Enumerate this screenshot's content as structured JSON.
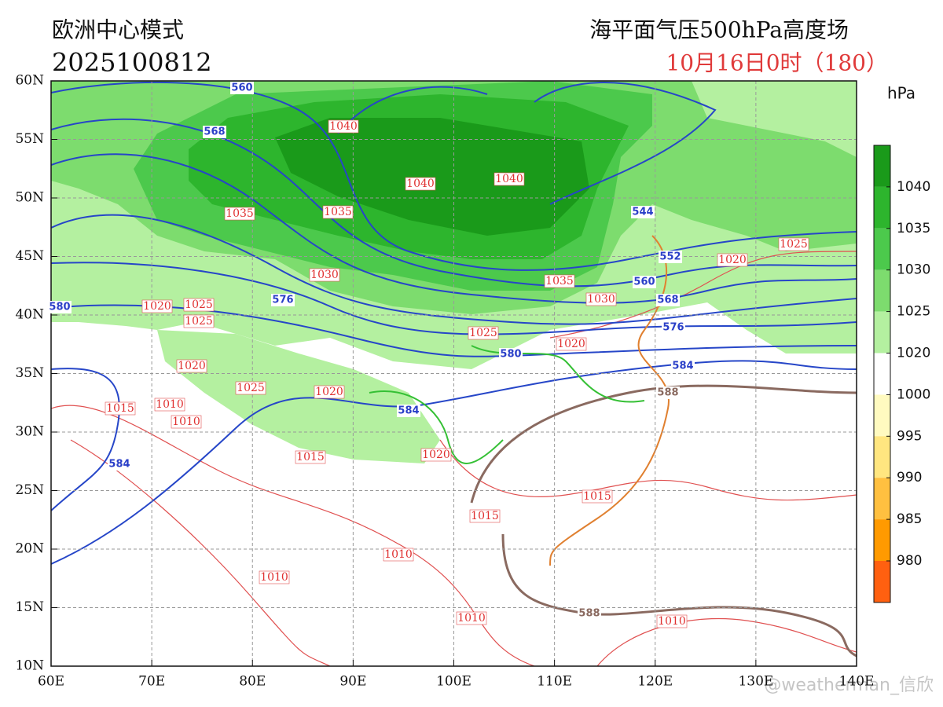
{
  "header": {
    "model": "欧洲中心模式",
    "init_time": "2025100812",
    "title": "海平面气压500hPa高度场",
    "valid_time": "10月16日0时（180）"
  },
  "map": {
    "lon_labels": [
      "60E",
      "70E",
      "80E",
      "90E",
      "100E",
      "110E",
      "120E",
      "130E",
      "140E"
    ],
    "lat_labels": [
      "60N",
      "55N",
      "50N",
      "45N",
      "40N",
      "35N",
      "30N",
      "25N",
      "20N",
      "15N",
      "10N"
    ],
    "height_labels": [
      560,
      568,
      544,
      552,
      560,
      568,
      580,
      576,
      576,
      580,
      584,
      584,
      588,
      584,
      588
    ],
    "pressure_labels": [
      1040,
      1040,
      1040,
      1035,
      1035,
      1030,
      1035,
      1030,
      1025,
      1020,
      1020,
      1025,
      1025,
      1025,
      1020,
      1020,
      1025,
      1020,
      1015,
      1010,
      1010,
      1015,
      1020,
      1015,
      1015,
      1010,
      1010,
      1010,
      1010
    ]
  },
  "colorbar": {
    "unit": "hPa",
    "labels": [
      1040,
      1035,
      1030,
      1025,
      1020,
      1000,
      995,
      990,
      985,
      980
    ]
  },
  "watermark": "@weatherman_信欣"
}
